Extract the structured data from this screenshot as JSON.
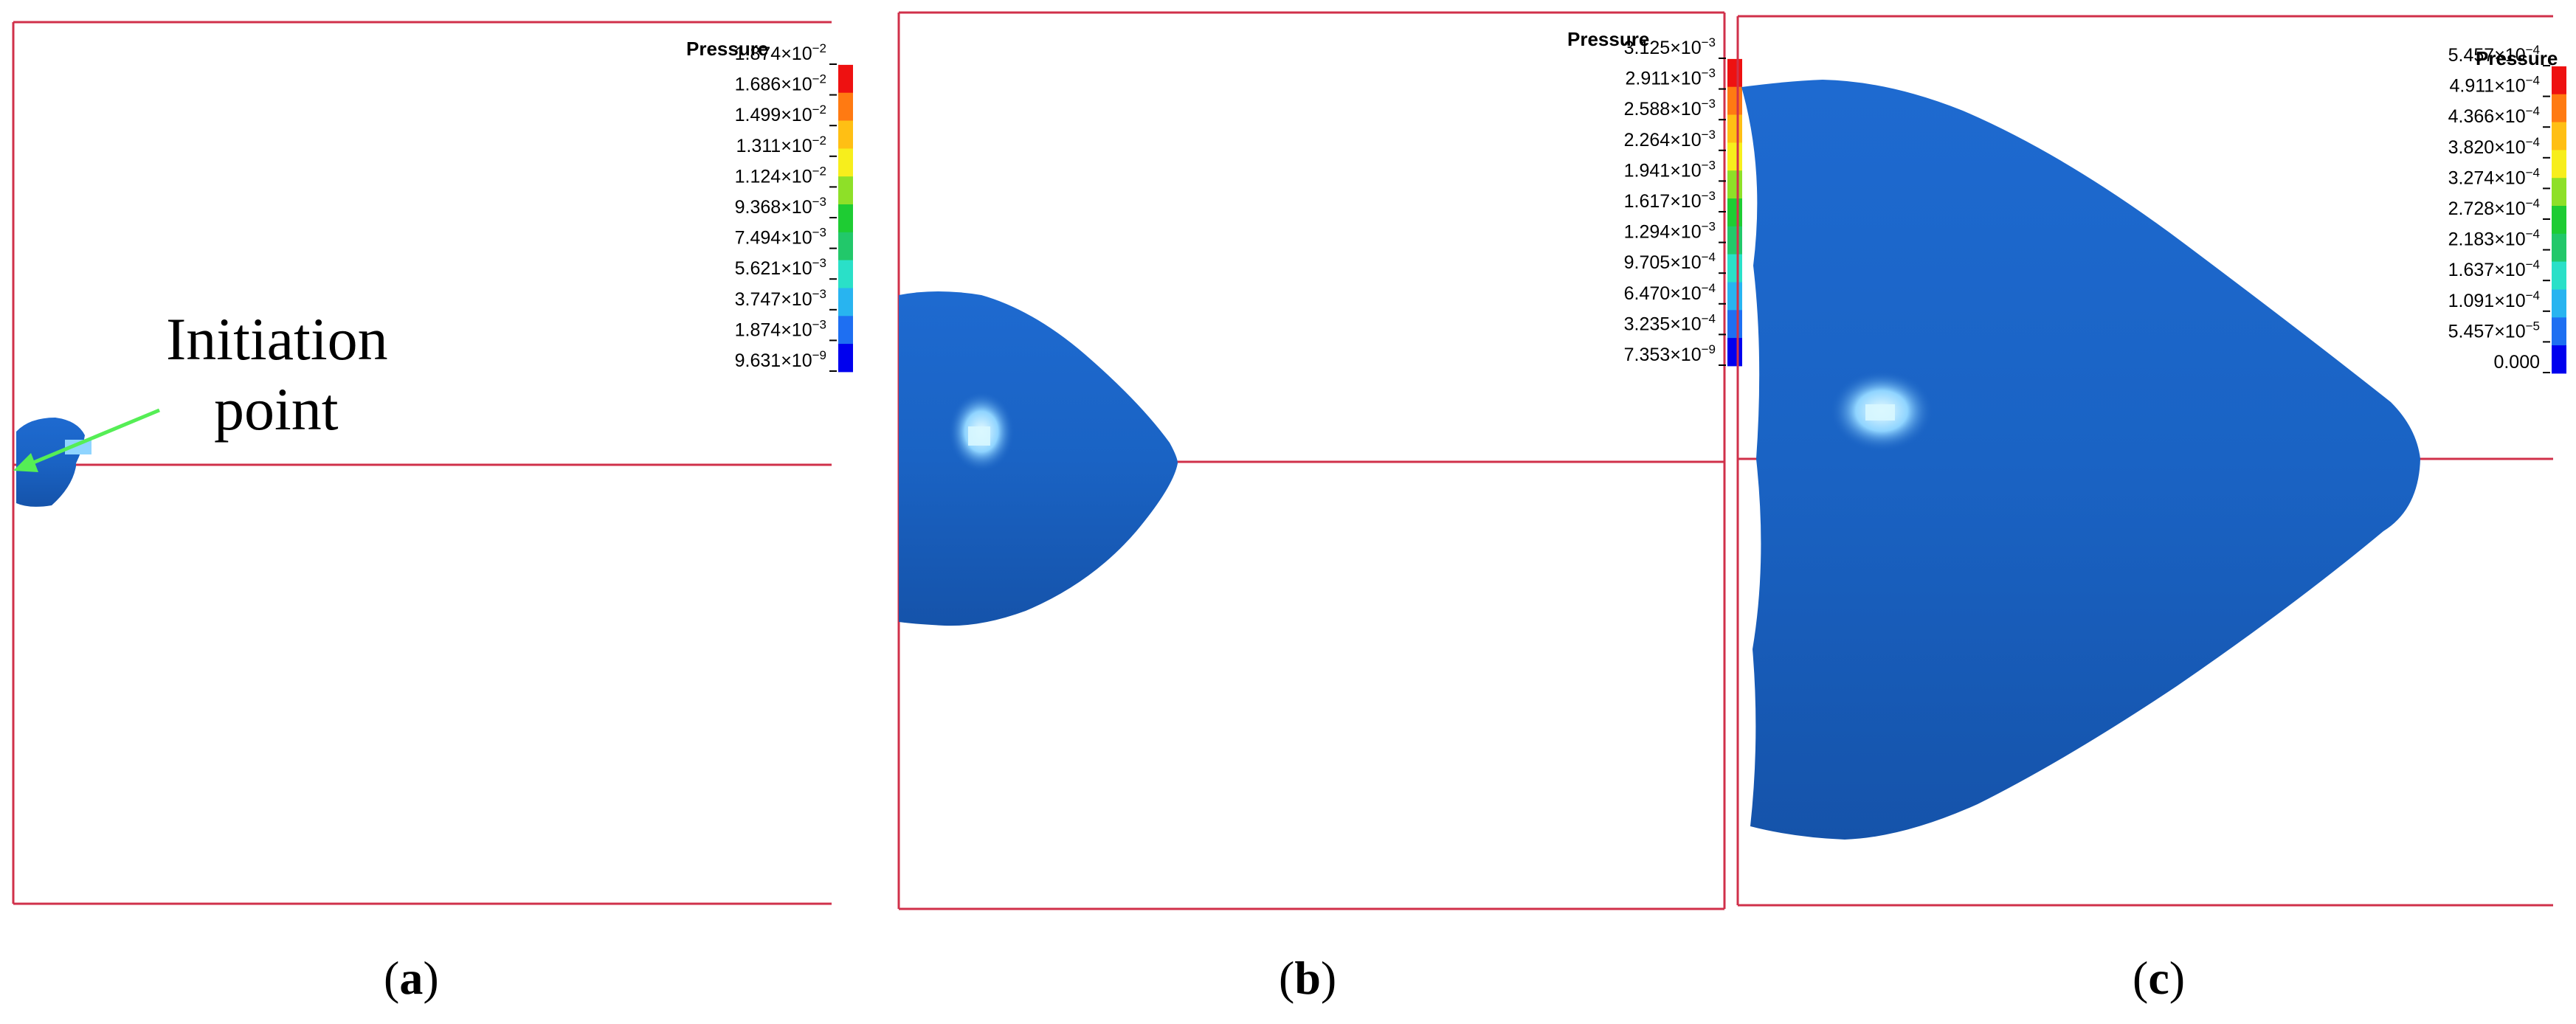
{
  "colors": {
    "frame": "#d0304a",
    "blob": "#1a63c4",
    "blob_dark": "#1553aa",
    "highlight": "#bfefff",
    "arrow": "#55ee55",
    "scale": [
      "#0000ee",
      "#1e6ff2",
      "#28b4f0",
      "#2ae0c8",
      "#22c86a",
      "#1ecc33",
      "#8ee028",
      "#f7ee1c",
      "#ffbf14",
      "#ff7a12",
      "#ee1111"
    ]
  },
  "panels": [
    {
      "id": "a",
      "caption_letter": "a",
      "legend_title": "Pressure",
      "ticks": [
        {
          "m": "1.874",
          "e": "−2"
        },
        {
          "m": "1.686",
          "e": "−2"
        },
        {
          "m": "1.499",
          "e": "−2"
        },
        {
          "m": "1.311",
          "e": "−2"
        },
        {
          "m": "1.124",
          "e": "−2"
        },
        {
          "m": "9.368",
          "e": "−3"
        },
        {
          "m": "7.494",
          "e": "−3"
        },
        {
          "m": "5.621",
          "e": "−3"
        },
        {
          "m": "3.747",
          "e": "−3"
        },
        {
          "m": "1.874",
          "e": "−3"
        },
        {
          "m": "9.631",
          "e": "−9"
        }
      ],
      "annotation_lines": [
        "Initiation",
        "point"
      ]
    },
    {
      "id": "b",
      "caption_letter": "b",
      "legend_title": "Pressure",
      "ticks": [
        {
          "m": "3.125",
          "e": "−3"
        },
        {
          "m": "2.911",
          "e": "−3"
        },
        {
          "m": "2.588",
          "e": "−3"
        },
        {
          "m": "2.264",
          "e": "−3"
        },
        {
          "m": "1.941",
          "e": "−3"
        },
        {
          "m": "1.617",
          "e": "−3"
        },
        {
          "m": "1.294",
          "e": "−3"
        },
        {
          "m": "9.705",
          "e": "−4"
        },
        {
          "m": "6.470",
          "e": "−4"
        },
        {
          "m": "3.235",
          "e": "−4"
        },
        {
          "m": "7.353",
          "e": "−9"
        }
      ]
    },
    {
      "id": "c",
      "caption_letter": "c",
      "legend_title": "Pressure",
      "ticks": [
        {
          "m": "5.457",
          "e": "−4"
        },
        {
          "m": "4.911",
          "e": "−4"
        },
        {
          "m": "4.366",
          "e": "−4"
        },
        {
          "m": "3.820",
          "e": "−4"
        },
        {
          "m": "3.274",
          "e": "−4"
        },
        {
          "m": "2.728",
          "e": "−4"
        },
        {
          "m": "2.183",
          "e": "−4"
        },
        {
          "m": "1.637",
          "e": "−4"
        },
        {
          "m": "1.091",
          "e": "−4"
        },
        {
          "m": "5.457",
          "e": "−5"
        },
        {
          "m": "0.000",
          "e": ""
        }
      ]
    }
  ]
}
